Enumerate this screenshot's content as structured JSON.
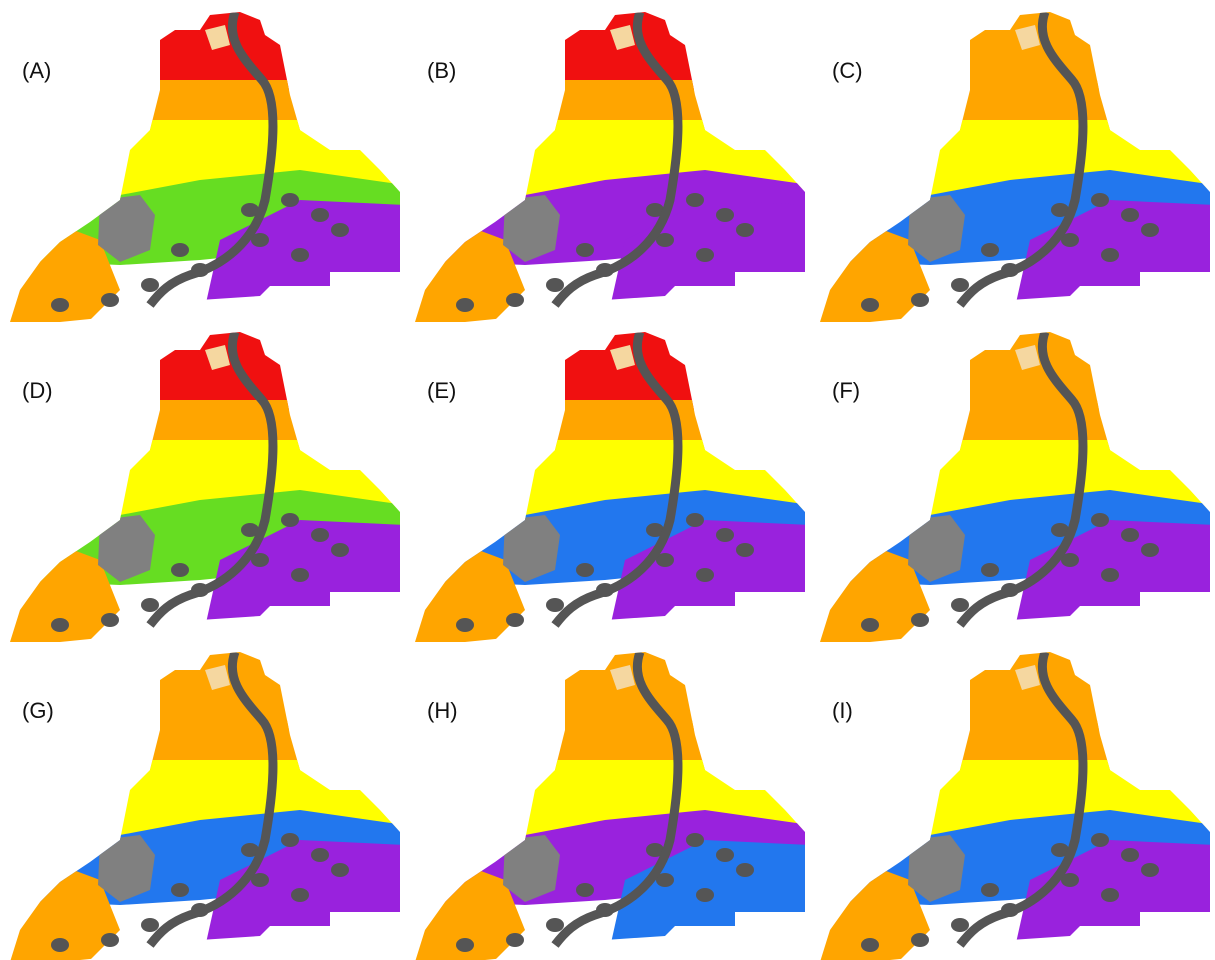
{
  "panels": [
    {
      "label": "(A)"
    },
    {
      "label": "(B)"
    },
    {
      "label": "(C)"
    },
    {
      "label": "(D)"
    },
    {
      "label": "(E)"
    },
    {
      "label": "(F)"
    },
    {
      "label": "(G)"
    },
    {
      "label": "(H)"
    },
    {
      "label": "(I)"
    }
  ]
}
